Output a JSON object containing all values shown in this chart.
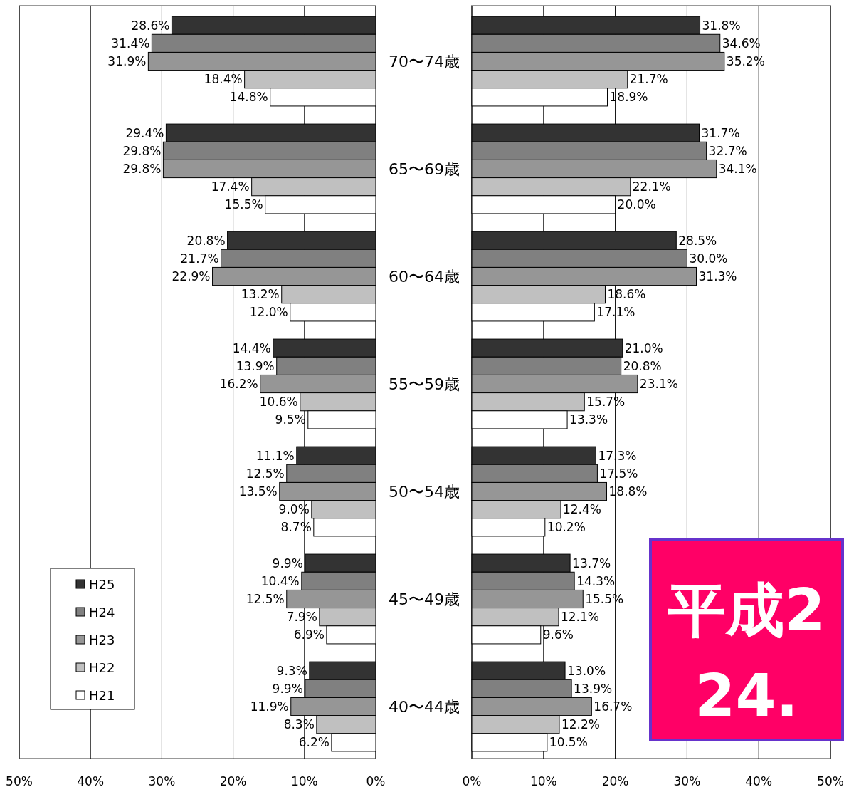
{
  "chart_data": [
    {
      "type": "bar",
      "orientation": "horizontal",
      "categories": [
        "70〜74歳",
        "65〜69歳",
        "60〜64歳",
        "55〜59歳",
        "50〜54歳",
        "45〜49歳",
        "40〜44歳"
      ],
      "series": [
        {
          "name": "H25",
          "color": "#333333",
          "values": [
            28.6,
            29.4,
            20.8,
            14.4,
            11.1,
            9.9,
            9.3
          ],
          "value_labels": [
            "28.6%",
            "29.4%",
            "20.8%",
            "14.4%",
            "11.1%",
            "9.9%",
            "9.3%"
          ]
        },
        {
          "name": "H24",
          "color": "#808080",
          "values": [
            31.4,
            29.8,
            21.7,
            13.9,
            12.5,
            10.4,
            9.9
          ],
          "value_labels": [
            "31.4%",
            "29.8%",
            "21.7%",
            "13.9%",
            "12.5%",
            "10.4%",
            "9.9%"
          ]
        },
        {
          "name": "H23",
          "color": "#969696",
          "values": [
            31.9,
            29.8,
            22.9,
            16.2,
            13.5,
            12.5,
            11.9
          ],
          "value_labels": [
            "31.9%",
            "29.8%",
            "22.9%",
            "16.2%",
            "13.5%",
            "12.5%",
            "11.9%"
          ]
        },
        {
          "name": "H22",
          "color": "#c0c0c0",
          "values": [
            18.4,
            17.4,
            13.2,
            10.6,
            9.0,
            7.9,
            8.3
          ],
          "value_labels": [
            "18.4%",
            "17.4%",
            "13.2%",
            "10.6%",
            "9.0%",
            "7.9%",
            "8.3%"
          ]
        },
        {
          "name": "H21",
          "color": "#ffffff",
          "values": [
            14.8,
            15.5,
            12.0,
            9.5,
            8.7,
            6.9,
            6.2
          ],
          "value_labels": [
            "14.8%",
            "15.5%",
            "12.0%",
            "9.5%",
            "8.7%",
            "6.9%",
            "6.2%"
          ]
        }
      ],
      "xlim": [
        50,
        0
      ],
      "xticks": [
        {
          "value": 50,
          "label": "50%"
        },
        {
          "value": 40,
          "label": "40%"
        },
        {
          "value": 30,
          "label": "30%"
        },
        {
          "value": 20,
          "label": "20%"
        },
        {
          "value": 10,
          "label": "10%"
        },
        {
          "value": 0,
          "label": "0%"
        }
      ],
      "grid": "x",
      "legend": "bottom left"
    },
    {
      "type": "bar",
      "orientation": "horizontal",
      "series": [
        {
          "color": "#333333",
          "values": [
            31.8,
            31.7,
            28.5,
            21.0,
            17.3,
            13.7,
            13.0
          ],
          "value_labels": [
            "31.8%",
            "31.7%",
            "28.5%",
            "21.0%",
            "17.3%",
            "13.7%",
            "13.0%"
          ]
        },
        {
          "color": "#808080",
          "values": [
            34.6,
            32.7,
            30.0,
            20.8,
            17.5,
            14.3,
            13.9
          ],
          "value_labels": [
            "34.6%",
            "32.7%",
            "30.0%",
            "20.8%",
            "17.5%",
            "14.3%",
            "13.9%"
          ]
        },
        {
          "color": "#969696",
          "values": [
            35.2,
            34.1,
            31.3,
            23.1,
            18.8,
            15.5,
            16.7
          ],
          "value_labels": [
            "35.2%",
            "34.1%",
            "31.3%",
            "23.1%",
            "18.8%",
            "15.5%",
            "16.7%"
          ]
        },
        {
          "color": "#c0c0c0",
          "values": [
            21.7,
            22.1,
            18.6,
            15.7,
            12.4,
            12.1,
            12.2
          ],
          "value_labels": [
            "21.7%",
            "22.1%",
            "18.6%",
            "15.7%",
            "12.4%",
            "12.1%",
            "12.2%"
          ]
        },
        {
          "color": "#ffffff",
          "values": [
            18.9,
            20.0,
            17.1,
            13.3,
            10.2,
            9.6,
            10.5
          ],
          "value_labels": [
            "18.9%",
            "20.0%",
            "17.1%",
            "13.3%",
            "10.2%",
            "9.6%",
            "10.5%"
          ]
        }
      ],
      "xlim": [
        0,
        50
      ],
      "xticks": [
        {
          "value": 0,
          "label": "0%"
        },
        {
          "value": 10,
          "label": "10%"
        },
        {
          "value": 20,
          "label": "20%"
        },
        {
          "value": 30,
          "label": "30%"
        },
        {
          "value": 40,
          "label": "40%"
        },
        {
          "value": 50,
          "label": "50%"
        }
      ],
      "grid": "x",
      "annotations": [
        "平成2",
        "24."
      ]
    }
  ]
}
